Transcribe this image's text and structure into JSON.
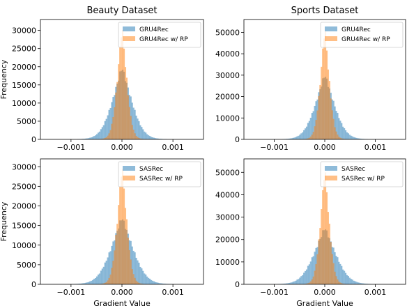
{
  "chart_data": [
    {
      "type": "histogram",
      "title": "Beauty Dataset",
      "xlabel": "",
      "ylabel": "Frequency",
      "xlim": [
        -0.0016,
        0.0016
      ],
      "ylim": [
        0,
        33000
      ],
      "xticks": [
        -0.001,
        0.0,
        0.001
      ],
      "xtick_labels": [
        "−0.001",
        "0.000",
        "0.001"
      ],
      "yticks": [
        0,
        5000,
        10000,
        15000,
        20000,
        25000,
        30000
      ],
      "ytick_labels": [
        "0",
        "5000",
        "10000",
        "15000",
        "20000",
        "25000",
        "30000"
      ],
      "legend": "top-right",
      "series": [
        {
          "name": "GRU4Rec",
          "color": "#1f77b4",
          "peak": 20000,
          "sigma": 0.00022,
          "tail_alpha": 0.95
        },
        {
          "name": "GRU4Rec w/ RP",
          "color": "#ff7f0e",
          "peak": 31500,
          "sigma": 0.000105,
          "tail_alpha": 0.75
        }
      ]
    },
    {
      "type": "histogram",
      "title": "Sports Dataset",
      "xlabel": "",
      "ylabel": "",
      "xlim": [
        -0.0016,
        0.0016
      ],
      "ylim": [
        0,
        56000
      ],
      "xticks": [
        -0.001,
        0.0,
        0.001
      ],
      "xtick_labels": [
        "−0.001",
        "0.000",
        "0.001"
      ],
      "yticks": [
        0,
        10000,
        20000,
        30000,
        40000,
        50000
      ],
      "ytick_labels": [
        "0",
        "10000",
        "20000",
        "30000",
        "40000",
        "50000"
      ],
      "legend": "top-right",
      "series": [
        {
          "name": "GRU4Rec",
          "color": "#1f77b4",
          "peak": 30500,
          "sigma": 0.00022,
          "tail_alpha": 0.95
        },
        {
          "name": "GRU4Rec w/ RP",
          "color": "#ff7f0e",
          "peak": 53000,
          "sigma": 0.0001,
          "tail_alpha": 0.75
        }
      ]
    },
    {
      "type": "histogram",
      "title": "",
      "xlabel": "Gradient Value",
      "ylabel": "Frequency",
      "xlim": [
        -0.0016,
        0.0016
      ],
      "ylim": [
        0,
        32000
      ],
      "xticks": [
        -0.001,
        0.0,
        0.001
      ],
      "xtick_labels": [
        "−0.001",
        "0.000",
        "0.001"
      ],
      "yticks": [
        0,
        5000,
        10000,
        15000,
        20000,
        25000,
        30000
      ],
      "ytick_labels": [
        "0",
        "5000",
        "10000",
        "15000",
        "20000",
        "25000",
        "30000"
      ],
      "legend": "top-right",
      "series": [
        {
          "name": "SASRec",
          "color": "#1f77b4",
          "peak": 17200,
          "sigma": 0.00025,
          "tail_alpha": 0.95
        },
        {
          "name": "SASRec w/ RP",
          "color": "#ff7f0e",
          "peak": 30800,
          "sigma": 0.000105,
          "tail_alpha": 0.75
        }
      ]
    },
    {
      "type": "histogram",
      "title": "",
      "xlabel": "Gradient Value",
      "ylabel": "",
      "xlim": [
        -0.0016,
        0.0016
      ],
      "ylim": [
        0,
        56000
      ],
      "xticks": [
        -0.001,
        0.0,
        0.001
      ],
      "xtick_labels": [
        "−0.001",
        "0.000",
        "0.001"
      ],
      "yticks": [
        0,
        10000,
        20000,
        30000,
        40000,
        50000
      ],
      "ytick_labels": [
        "0",
        "10000",
        "20000",
        "30000",
        "40000",
        "50000"
      ],
      "legend": "top-right",
      "series": [
        {
          "name": "SASRec",
          "color": "#1f77b4",
          "peak": 25500,
          "sigma": 0.00025,
          "tail_alpha": 0.95
        },
        {
          "name": "SASRec w/ RP",
          "color": "#ff7f0e",
          "peak": 52500,
          "sigma": 0.0001,
          "tail_alpha": 0.75
        }
      ]
    }
  ]
}
